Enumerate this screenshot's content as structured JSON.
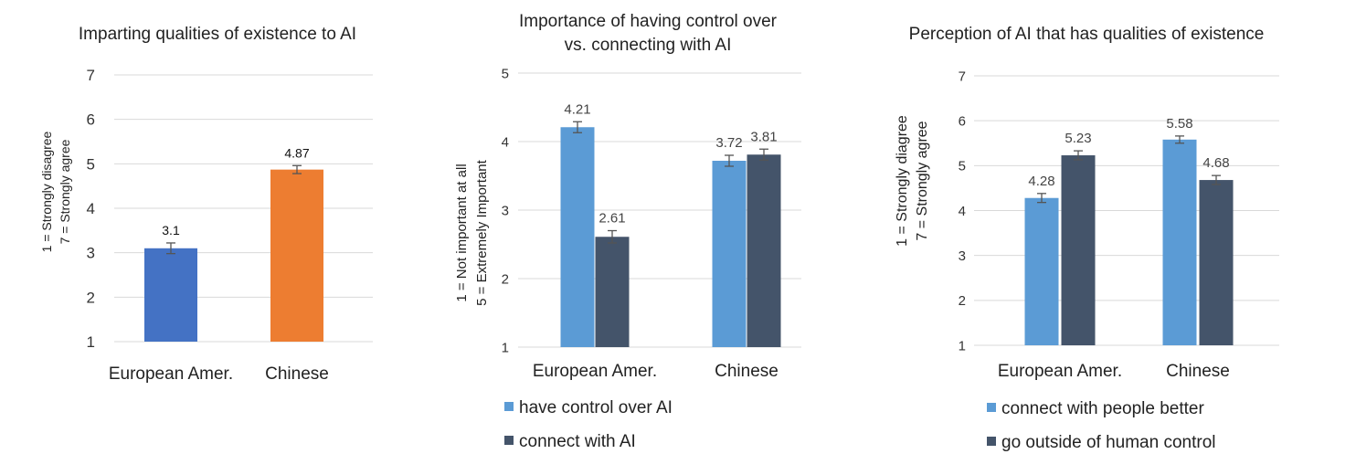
{
  "chart_data": [
    {
      "type": "bar",
      "title": "Imparting qualities of existence to AI",
      "ylabel_lines": [
        "1 = Strongly disagree",
        "7 = Strongly agree"
      ],
      "ylim": [
        1,
        7
      ],
      "yticks": [
        1,
        2,
        3,
        4,
        5,
        6,
        7
      ],
      "categories": [
        "European Amer.",
        "Chinese"
      ],
      "series": [
        {
          "values": [
            3.1,
            4.87
          ],
          "errors": [
            0.12,
            0.09
          ],
          "value_labels": [
            "3.1",
            "4.87"
          ],
          "colors": [
            "#4472C4",
            "#ED7D31"
          ]
        }
      ],
      "grid": true,
      "legend": []
    },
    {
      "type": "bar",
      "title_lines": [
        "Importance of having control over",
        "vs. connecting with  AI"
      ],
      "ylabel_lines": [
        "1 = Not important at all",
        "5 = Extremely Important"
      ],
      "ylim": [
        1,
        5
      ],
      "yticks": [
        1,
        2,
        3,
        4,
        5
      ],
      "categories": [
        "European Amer.",
        "Chinese"
      ],
      "series": [
        {
          "name": "have control over AI",
          "color": "#5B9BD5",
          "values": [
            4.21,
            3.72
          ],
          "errors": [
            0.08,
            0.08
          ],
          "value_labels": [
            "4.21",
            "3.72"
          ]
        },
        {
          "name": "connect with AI",
          "color": "#44546A",
          "values": [
            2.61,
            3.81
          ],
          "errors": [
            0.09,
            0.08
          ],
          "value_labels": [
            "2.61",
            "3.81"
          ]
        }
      ],
      "grid": true,
      "legend_position": "bottom-left"
    },
    {
      "type": "bar",
      "title": "Perception of AI that has qualities of existence",
      "ylabel_lines": [
        "1 = Strongly diagree",
        "7 = Strongly agree"
      ],
      "ylim": [
        1,
        7
      ],
      "yticks": [
        1,
        2,
        3,
        4,
        5,
        6,
        7
      ],
      "categories": [
        "European Amer.",
        "Chinese"
      ],
      "series": [
        {
          "name": "connect with people better",
          "color": "#5B9BD5",
          "values": [
            4.28,
            5.58
          ],
          "errors": [
            0.1,
            0.08
          ],
          "value_labels": [
            "4.28",
            "5.58"
          ]
        },
        {
          "name": "go outside of human control",
          "color": "#44546A",
          "values": [
            5.23,
            4.68
          ],
          "errors": [
            0.1,
            0.1
          ],
          "value_labels": [
            "5.23",
            "4.68"
          ]
        }
      ],
      "grid": true,
      "legend_position": "bottom-left"
    }
  ]
}
